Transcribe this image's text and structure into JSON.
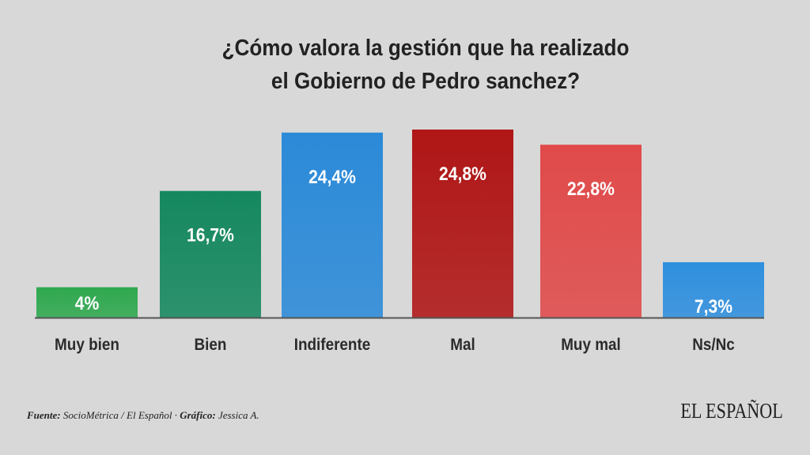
{
  "title_line1": "¿Cómo valora la gestión que ha realizado",
  "title_line2": "el Gobierno de Pedro sanchez?",
  "chart_data": {
    "type": "bar",
    "title": "¿Cómo valora la gestión que ha realizado el Gobierno de Pedro sanchez?",
    "categories": [
      "Muy bien",
      "Bien",
      "Indiferente",
      "Mal",
      "Muy mal",
      "Ns/Nc"
    ],
    "values": [
      4,
      16.7,
      24.4,
      24.8,
      22.8,
      7.3
    ],
    "labels": [
      "4%",
      "16,7%",
      "24,4%",
      "24,8%",
      "22,8%",
      "7,3%"
    ],
    "colors": [
      "#2fa84f",
      "#15885f",
      "#2b8ad8",
      "#b01616",
      "#e04a4a",
      "#2f8fde"
    ],
    "xlabel": "",
    "ylabel": "",
    "ylim": [
      0,
      24.8
    ],
    "grid": false
  },
  "footer": {
    "source_label": "Fuente:",
    "source_text": "SocioMétrica / El Español ·",
    "graphic_label": "Gráfico:",
    "graphic_text": "Jessica A."
  },
  "logo_text": "EL ESPAÑOL"
}
